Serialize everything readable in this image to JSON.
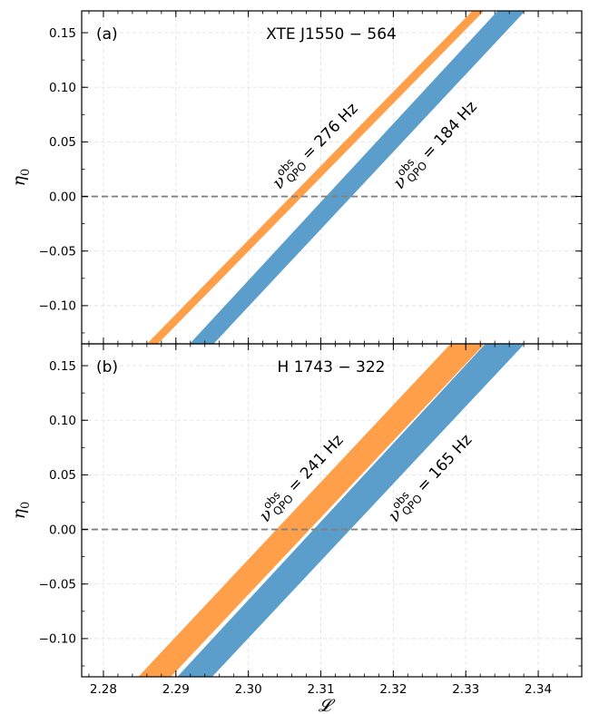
{
  "chart_data": [
    {
      "type": "area",
      "panel_tag": "(a)",
      "title": "XTE J1550 − 564",
      "xlabel": "𝓛",
      "ylabel": "η",
      "ylabel_sub": "0",
      "xlim": [
        2.277,
        2.346
      ],
      "ylim": [
        -0.135,
        0.17
      ],
      "xticks": [
        2.28,
        2.29,
        2.3,
        2.31,
        2.32,
        2.33,
        2.34
      ],
      "xtick_labels": [
        "2.28",
        "2.29",
        "2.30",
        "2.31",
        "2.32",
        "2.33",
        "2.34"
      ],
      "yticks": [
        -0.1,
        -0.05,
        0.0,
        0.05,
        0.1,
        0.15
      ],
      "ytick_labels": [
        "−0.10",
        "−0.05",
        "0.00",
        "0.05",
        "0.10",
        "0.15"
      ],
      "grid": true,
      "reference_line": {
        "y": 0.0,
        "style": "dashed",
        "color": "#808080"
      },
      "series": [
        {
          "label_prefix": "ν",
          "label_sup": "obs",
          "label_sub": "QPO",
          "label_value": " = 276 Hz",
          "color": "#ff9f4a",
          "band": [
            {
              "x_low": 2.286,
              "x_high": 2.2875,
              "y": -0.135
            },
            {
              "x_low": 2.3309,
              "x_high": 2.3325,
              "y": 0.17
            }
          ],
          "label_at": {
            "x": 2.3043,
            "y": 0.006
          }
        },
        {
          "label_prefix": "ν",
          "label_sup": "obs",
          "label_sub": "QPO",
          "label_value": " = 184 Hz",
          "color": "#5b9ecb",
          "band": [
            {
              "x_low": 2.2919,
              "x_high": 2.2952,
              "y": -0.135
            },
            {
              "x_low": 2.3344,
              "x_high": 2.3382,
              "y": 0.17
            }
          ],
          "label_at": {
            "x": 2.321,
            "y": 0.006
          }
        }
      ]
    },
    {
      "type": "area",
      "panel_tag": "(b)",
      "title": "H 1743 − 322",
      "xlabel": "𝓛",
      "ylabel": "η",
      "ylabel_sub": "0",
      "xlim": [
        2.277,
        2.346
      ],
      "ylim": [
        -0.135,
        0.17
      ],
      "xticks": [
        2.28,
        2.29,
        2.3,
        2.31,
        2.32,
        2.33,
        2.34
      ],
      "xtick_labels": [
        "2.28",
        "2.29",
        "2.30",
        "2.31",
        "2.32",
        "2.33",
        "2.34"
      ],
      "yticks": [
        -0.1,
        -0.05,
        0.0,
        0.05,
        0.1,
        0.15
      ],
      "ytick_labels": [
        "−0.10",
        "−0.05",
        "0.00",
        "0.05",
        "0.10",
        "0.15"
      ],
      "grid": true,
      "reference_line": {
        "y": 0.0,
        "style": "dashed",
        "color": "#808080"
      },
      "series": [
        {
          "label_prefix": "ν",
          "label_sup": "obs",
          "label_sub": "QPO",
          "label_value": " = 241 Hz",
          "color": "#ff9f4a",
          "band": [
            {
              "x_low": 2.2848,
              "x_high": 2.2893,
              "y": -0.135
            },
            {
              "x_low": 2.3279,
              "x_high": 2.3326,
              "y": 0.17
            }
          ],
          "label_at": {
            "x": 2.3025,
            "y": 0.006
          }
        },
        {
          "label_prefix": "ν",
          "label_sup": "obs",
          "label_sub": "QPO",
          "label_value": " = 165 Hz",
          "color": "#5b9ecb",
          "band": [
            {
              "x_low": 2.2902,
              "x_high": 2.295,
              "y": -0.135
            },
            {
              "x_low": 2.3327,
              "x_high": 2.3381,
              "y": 0.17
            }
          ],
          "label_at": {
            "x": 2.3203,
            "y": 0.006
          }
        }
      ]
    }
  ]
}
